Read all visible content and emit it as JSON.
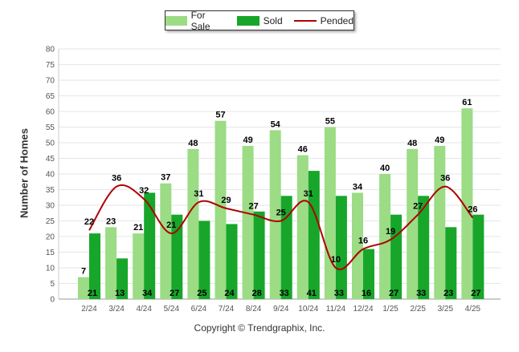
{
  "chart_data": {
    "type": "bar",
    "ylabel": "Number of Homes",
    "xlabel": "",
    "ylim": [
      0,
      80
    ],
    "yticks": [
      0,
      5,
      10,
      15,
      20,
      25,
      30,
      35,
      40,
      45,
      50,
      55,
      60,
      65,
      70,
      75,
      80
    ],
    "grid": true,
    "legend_position": "top-center",
    "categories": [
      "2/24",
      "3/24",
      "4/24",
      "5/24",
      "6/24",
      "7/24",
      "8/24",
      "9/24",
      "10/24",
      "11/24",
      "12/24",
      "1/25",
      "2/25",
      "3/25",
      "4/25"
    ],
    "series": [
      {
        "name": "For Sale",
        "kind": "bar",
        "color": "#9bdc85",
        "values": [
          7,
          23,
          21,
          37,
          48,
          57,
          49,
          54,
          46,
          55,
          34,
          40,
          48,
          49,
          61
        ]
      },
      {
        "name": "Sold",
        "kind": "bar",
        "color": "#17a62a",
        "values": [
          21,
          13,
          34,
          27,
          25,
          24,
          28,
          33,
          41,
          33,
          16,
          27,
          33,
          23,
          27
        ]
      },
      {
        "name": "Pended",
        "kind": "line",
        "color": "#b00000",
        "values": [
          22,
          36,
          32,
          21,
          31,
          29,
          27,
          25,
          31,
          10,
          16,
          19,
          27,
          36,
          26
        ]
      }
    ]
  },
  "legend": {
    "for_sale": "For Sale",
    "sold": "Sold",
    "pended": "Pended"
  },
  "footer": {
    "copyright": "Copyright © Trendgraphix, Inc."
  }
}
